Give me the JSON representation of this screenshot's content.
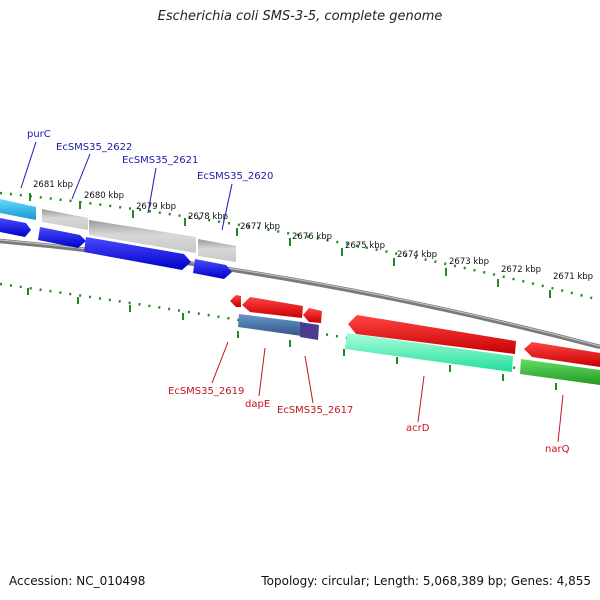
{
  "title": "Escherichia coli SMS-3-5, complete genome",
  "accession": "Accession: NC_010498",
  "stats": "Topology: circular; Length: 5,068,389 bp; Genes: 4,855",
  "kbp_ticks": [
    "2681 kbp",
    "2680 kbp",
    "2679 kbp",
    "2678 kbp",
    "2677 kbp",
    "2676 kbp",
    "2675 kbp",
    "2674 kbp",
    "2673 kbp",
    "2672 kbp",
    "2671 kbp"
  ],
  "genes_upper": [
    {
      "label": "purC",
      "color": "#1a1aa8"
    },
    {
      "label": "EcSMS35_2622",
      "color": "#1a1aa8"
    },
    {
      "label": "EcSMS35_2621",
      "color": "#1a1aa8"
    },
    {
      "label": "EcSMS35_2620",
      "color": "#1a1aa8"
    }
  ],
  "genes_lower": [
    {
      "label": "EcSMS35_2619",
      "color": "#c0161e"
    },
    {
      "label": "dapE",
      "color": "#c0161e"
    },
    {
      "label": "EcSMS35_2617",
      "color": "#c0161e"
    },
    {
      "label": "acrD",
      "color": "#c0161e"
    },
    {
      "label": "narQ",
      "color": "#c0161e"
    }
  ],
  "colors": {
    "forward_cds": "#1a1aee",
    "reverse_cds": "#ee1111",
    "forward_feature_cyan": "#22bbe8",
    "reverse_feature_green": "#22ee99",
    "reverse_feature_darkgreen": "#33bb33",
    "reverse_feature_blue": "#4477aa",
    "gray_feature": "#b8b8b8",
    "backbone": "#888888",
    "tick_green": "#228822"
  }
}
